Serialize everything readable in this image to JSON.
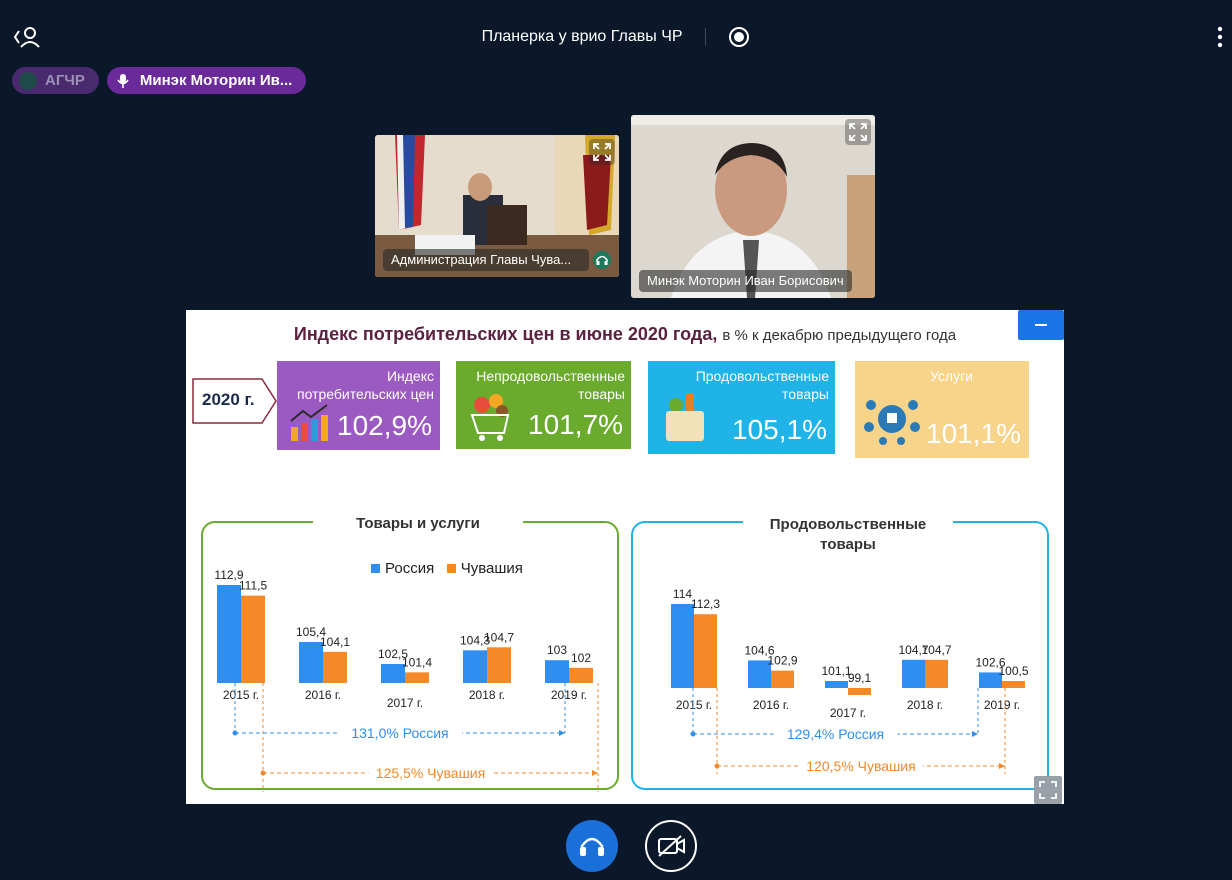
{
  "header": {
    "title": "Планерка у врио Главы ЧР"
  },
  "participants": [
    {
      "name": "АГЧР"
    },
    {
      "name": "Минэк Моторин Ив..."
    }
  ],
  "videos": [
    {
      "label": "Администрация Главы Чува..."
    },
    {
      "label": "Минэк Моторин Иван Борисович"
    }
  ],
  "slide": {
    "title": "Индекс потребительских цен  в июне 2020 года,",
    "subtitle": "в % к декабрю предыдущего года",
    "year_tag": "2020 г.",
    "cards": [
      {
        "label": "Индекс\nпотребительских цен",
        "value": "102,9%"
      },
      {
        "label": "Непродовольственные\nтовары",
        "value": "101,7%"
      },
      {
        "label": "Продовольственные\nтовары",
        "value": "105,1%"
      },
      {
        "label": "Услуги",
        "value": "101,1%"
      }
    ],
    "legend": {
      "russia": "Россия",
      "chuvashia": "Чувашия"
    },
    "colors": {
      "russia": "#2e8ff0",
      "chuvashia": "#f5892a",
      "purple": "#9b59c2",
      "green": "#6aab2e",
      "blue": "#1fb3e8",
      "yellow": "#f8d38a"
    },
    "panels": [
      {
        "title": "Товары и услуги",
        "total_russia": "131,0% Россия",
        "total_chuvashia": "125,5% Чувашия"
      },
      {
        "title": "Продовольственные\nтовары",
        "total_russia": "129,4% Россия",
        "total_chuvashia": "120,5% Чувашия"
      }
    ]
  },
  "chart_data": [
    {
      "type": "bar",
      "title": "Товары и услуги",
      "categories": [
        "2015 г.",
        "2016 г.",
        "2017 г.",
        "2018 г.",
        "2019 г."
      ],
      "series": [
        {
          "name": "Россия",
          "values": [
            112.9,
            105.4,
            102.5,
            104.3,
            103
          ]
        },
        {
          "name": "Чувашия",
          "values": [
            111.5,
            104.1,
            101.4,
            104.7,
            102
          ]
        }
      ],
      "value_labels": {
        "Россия": [
          "112,9",
          "105,4",
          "102,5",
          "104,3",
          "103"
        ],
        "Чувашия": [
          "111,5",
          "104,1",
          "101,4",
          "104,7",
          "102"
        ]
      },
      "baseline": 100
    },
    {
      "type": "bar",
      "title": "Продовольственные товары",
      "categories": [
        "2015 г.",
        "2016 г.",
        "2017 г.",
        "2018 г.",
        "2019 г."
      ],
      "series": [
        {
          "name": "Россия",
          "values": [
            114,
            104.6,
            101.1,
            104.7,
            102.6
          ]
        },
        {
          "name": "Чувашия",
          "values": [
            112.3,
            102.9,
            99.1,
            104.7,
            100.5
          ]
        }
      ],
      "value_labels": {
        "Россия": [
          "114",
          "104,6",
          "101,1",
          "104,7",
          "102,6"
        ],
        "Чувашия": [
          "112,3",
          "102,9",
          "99,1",
          "104,7",
          "100,5"
        ]
      },
      "baseline": 100
    }
  ]
}
